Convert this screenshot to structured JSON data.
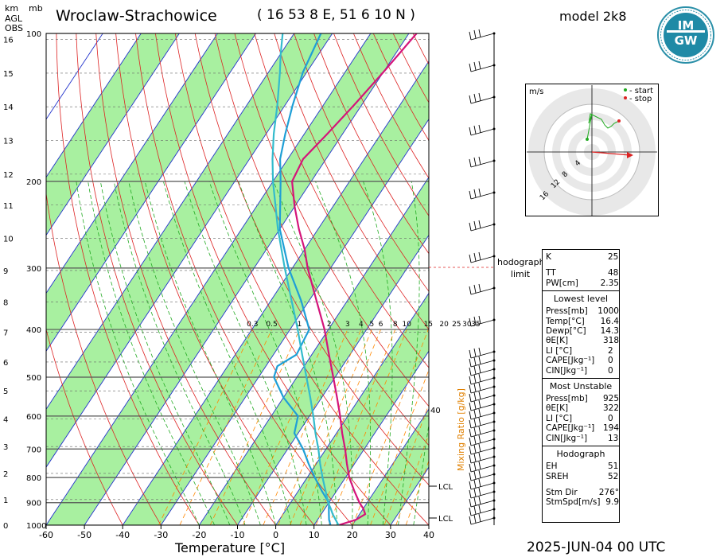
{
  "header": {
    "title": "Wroclaw-Strachowice",
    "coords": "( 16 53 8 E, 51 6 10 N )",
    "model": "model 2k8",
    "date": "2025-JUN-04   00 UTC",
    "axis_units_km": "km",
    "axis_units_mb": "mb",
    "agl": "AGL",
    "obs": "OBS"
  },
  "logo": {
    "text": "IMGW",
    "icon": "imgw-logo-icon"
  },
  "chart_data": {
    "type": "line",
    "subtype": "skew-t log-p diagram",
    "xlabel": "Temperature [°C]",
    "xlim": [
      -60,
      40
    ],
    "x_ticks": [
      -60,
      -50,
      -40,
      -30,
      -20,
      -10,
      0,
      10,
      20,
      30,
      40
    ],
    "pressure_ticks_mb": [
      100,
      200,
      300,
      400,
      500,
      600,
      700,
      800,
      900,
      1000
    ],
    "height_ticks_km": [
      0,
      1,
      2,
      3,
      4,
      5,
      6,
      7,
      8,
      9,
      10,
      11,
      12,
      13,
      14,
      15,
      16
    ],
    "mixing_ratio_label": "Mixing Ratio [g/kg]",
    "mixing_ratio_values": [
      "0.3",
      "0.5",
      "1",
      "2",
      "3",
      "4",
      "5",
      "6",
      "8",
      "10",
      "15",
      "20",
      "25",
      "30",
      "35"
    ],
    "mixing_ratio_40": "40",
    "lcl_label": "LCL",
    "series": [
      {
        "name": "temperature",
        "color": "#d4147a",
        "points": [
          [
            1000,
            16.4
          ],
          [
            975,
            20
          ],
          [
            950,
            21.5
          ],
          [
            925,
            20
          ],
          [
            900,
            18
          ],
          [
            850,
            14.5
          ],
          [
            800,
            11
          ],
          [
            750,
            8
          ],
          [
            700,
            5
          ],
          [
            650,
            1.5
          ],
          [
            600,
            -2
          ],
          [
            550,
            -6
          ],
          [
            500,
            -10.5
          ],
          [
            450,
            -15.5
          ],
          [
            400,
            -21
          ],
          [
            350,
            -28
          ],
          [
            300,
            -36
          ],
          [
            275,
            -40
          ],
          [
            250,
            -45
          ],
          [
            225,
            -50
          ],
          [
            200,
            -55
          ],
          [
            180,
            -56
          ],
          [
            160,
            -54
          ],
          [
            140,
            -52
          ],
          [
            120,
            -50
          ],
          [
            100,
            -48
          ]
        ]
      },
      {
        "name": "dewpoint",
        "color": "#1f9fd6",
        "points": [
          [
            1000,
            14.3
          ],
          [
            975,
            13
          ],
          [
            950,
            12
          ],
          [
            925,
            11
          ],
          [
            900,
            10
          ],
          [
            850,
            6
          ],
          [
            800,
            2
          ],
          [
            750,
            -2
          ],
          [
            700,
            -6
          ],
          [
            650,
            -11
          ],
          [
            600,
            -13
          ],
          [
            550,
            -20
          ],
          [
            500,
            -26
          ],
          [
            475,
            -27
          ],
          [
            450,
            -24
          ],
          [
            400,
            -25
          ],
          [
            350,
            -32
          ],
          [
            300,
            -41
          ],
          [
            250,
            -50
          ],
          [
            200,
            -58
          ],
          [
            180,
            -62
          ],
          [
            160,
            -65
          ],
          [
            140,
            -68
          ],
          [
            120,
            -71
          ],
          [
            100,
            -73
          ]
        ]
      },
      {
        "name": "parcel",
        "color": "#33bbcc",
        "points": [
          [
            1000,
            16.4
          ],
          [
            950,
            13
          ],
          [
            925,
            11.5
          ],
          [
            900,
            9.8
          ],
          [
            850,
            7
          ],
          [
            800,
            4
          ],
          [
            750,
            1
          ],
          [
            700,
            -2
          ],
          [
            650,
            -5.5
          ],
          [
            600,
            -9
          ],
          [
            550,
            -13
          ],
          [
            500,
            -17.5
          ],
          [
            450,
            -22.5
          ],
          [
            400,
            -28
          ],
          [
            350,
            -34.5
          ],
          [
            300,
            -42
          ],
          [
            250,
            -50.5
          ],
          [
            200,
            -60
          ],
          [
            180,
            -64
          ],
          [
            160,
            -68
          ],
          [
            140,
            -72
          ],
          [
            120,
            -77
          ],
          [
            110,
            -80
          ],
          [
            100,
            -83
          ]
        ]
      }
    ]
  },
  "hodograph": {
    "unit": "m/s",
    "legend_start": "- start",
    "legend_stop": "- stop",
    "rings": [
      "4",
      "8",
      "12",
      "16"
    ]
  },
  "hodograph_limit_label": "hodograph limit",
  "indices": {
    "top": [
      {
        "k": "K",
        "v": "25"
      },
      {
        "k": "TT",
        "v": "48"
      },
      {
        "k": "PW[cm]",
        "v": "2.35"
      }
    ],
    "lowest_title": "Lowest level",
    "lowest": [
      {
        "k": "Press[mb]",
        "v": "1000"
      },
      {
        "k": "Temp[°C]",
        "v": "16.4"
      },
      {
        "k": "Dewp[°C]",
        "v": "14.3"
      },
      {
        "k": "θE[K]",
        "v": "318"
      },
      {
        "k": "LI [°C]",
        "v": "2"
      },
      {
        "k": "CAPE[Jkg⁻¹]",
        "v": "0"
      },
      {
        "k": "CIN[Jkg⁻¹]",
        "v": "0"
      }
    ],
    "mu_title": "Most Unstable",
    "mu": [
      {
        "k": "Press[mb]",
        "v": "925"
      },
      {
        "k": "θE[K]",
        "v": "322"
      },
      {
        "k": "LI [°C]",
        "v": "0"
      },
      {
        "k": "CAPE[Jkg⁻¹]",
        "v": "194"
      },
      {
        "k": "CIN[Jkg⁻¹]",
        "v": "13"
      }
    ],
    "hodo_title": "Hodograph",
    "hodo": [
      {
        "k": "EH",
        "v": "51"
      },
      {
        "k": "SREH",
        "v": "52"
      },
      {
        "k": "Stm Dir",
        "v": "276°"
      },
      {
        "k": "StmSpd[m/s]",
        "v": "9.9"
      }
    ]
  },
  "colors": {
    "green_band": "#a8f0a0",
    "isobar": "#555555",
    "isotherm": "#2233cc",
    "dry_adiabat": "#dd2222",
    "moist_adiabat": "#22aa22",
    "mixing_ratio": "#ff8800"
  }
}
